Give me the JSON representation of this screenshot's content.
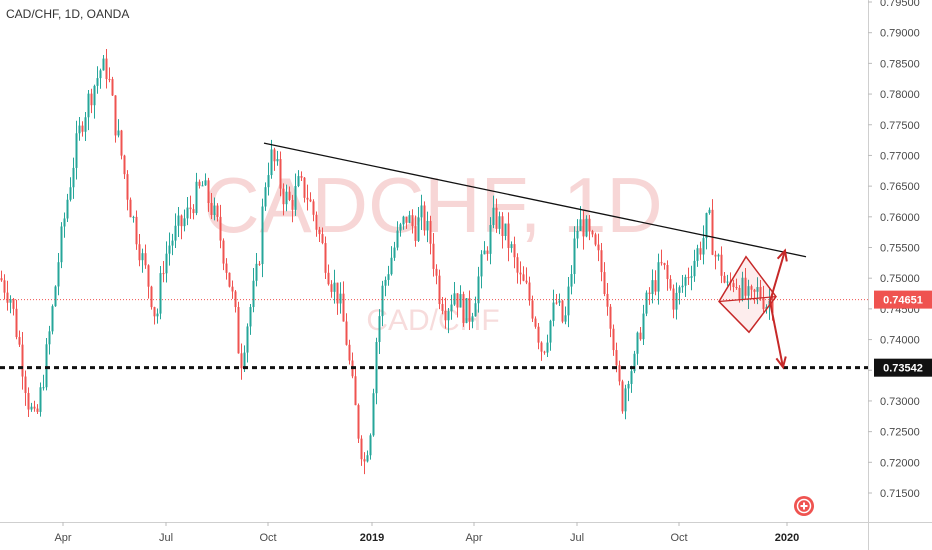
{
  "header": {
    "symbol_title": "CAD/CHF, 1D, OANDA"
  },
  "watermark": {
    "main": "CADCHF, 1D",
    "sub": "CAD/CHF"
  },
  "colors": {
    "up": "#26a69a",
    "down": "#ef5350",
    "trendline": "#111111",
    "current_line": "#ef5350",
    "support_line": "#111111",
    "pattern": "#c62828",
    "axis_text": "#4a4a4a",
    "current_tag_bg": "#ef5350",
    "support_tag_bg": "#111111"
  },
  "chart_data": {
    "type": "candlestick",
    "title": "CAD/CHF, 1D, OANDA",
    "ylim": [
      0.7095,
      0.7965
    ],
    "y_ticks": [
      "0.71500",
      "0.72000",
      "0.72500",
      "0.73000",
      "0.73500",
      "0.74000",
      "0.74500",
      "0.75000",
      "0.75500",
      "0.76000",
      "0.76500",
      "0.77000",
      "0.77500",
      "0.78000",
      "0.78500",
      "0.79000",
      "0.79500"
    ],
    "x_ticks": [
      "Apr",
      "Jul",
      "Oct",
      "2019",
      "Apr",
      "Jul",
      "Oct",
      "2020"
    ],
    "x_ticks_bold": [
      "2019",
      "2020"
    ],
    "current_price": "0.74651",
    "support_price": "0.73542",
    "series": [
      {
        "name": "CAD/CHF",
        "path_closes": [
          [
            0,
            0.75
          ],
          [
            10,
            0.747
          ],
          [
            20,
            0.738
          ],
          [
            28,
            0.73
          ],
          [
            35,
            0.726
          ],
          [
            42,
            0.733
          ],
          [
            50,
            0.742
          ],
          [
            58,
            0.753
          ],
          [
            66,
            0.762
          ],
          [
            74,
            0.77
          ],
          [
            82,
            0.776
          ],
          [
            90,
            0.78
          ],
          [
            100,
            0.784
          ],
          [
            107,
            0.784
          ],
          [
            114,
            0.776
          ],
          [
            121,
            0.77
          ],
          [
            128,
            0.763
          ],
          [
            135,
            0.758
          ],
          [
            142,
            0.753
          ],
          [
            150,
            0.748
          ],
          [
            156,
            0.743
          ],
          [
            162,
            0.752
          ],
          [
            170,
            0.756
          ],
          [
            178,
            0.758
          ],
          [
            186,
            0.76
          ],
          [
            194,
            0.763
          ],
          [
            202,
            0.765
          ],
          [
            210,
            0.762
          ],
          [
            218,
            0.758
          ],
          [
            226,
            0.752
          ],
          [
            234,
            0.745
          ],
          [
            240,
            0.736
          ],
          [
            246,
            0.742
          ],
          [
            252,
            0.747
          ],
          [
            258,
            0.752
          ],
          [
            264,
            0.765
          ],
          [
            270,
            0.77
          ],
          [
            276,
            0.768
          ],
          [
            282,
            0.764
          ],
          [
            290,
            0.762
          ],
          [
            298,
            0.765
          ],
          [
            306,
            0.764
          ],
          [
            314,
            0.76
          ],
          [
            322,
            0.755
          ],
          [
            330,
            0.75
          ],
          [
            338,
            0.747
          ],
          [
            346,
            0.74
          ],
          [
            352,
            0.732
          ],
          [
            358,
            0.725
          ],
          [
            364,
            0.72
          ],
          [
            370,
            0.726
          ],
          [
            376,
            0.74
          ],
          [
            382,
            0.748
          ],
          [
            390,
            0.753
          ],
          [
            398,
            0.757
          ],
          [
            406,
            0.76
          ],
          [
            414,
            0.758
          ],
          [
            422,
            0.76
          ],
          [
            430,
            0.756
          ],
          [
            438,
            0.748
          ],
          [
            446,
            0.745
          ],
          [
            454,
            0.748
          ],
          [
            462,
            0.745
          ],
          [
            470,
            0.744
          ],
          [
            478,
            0.75
          ],
          [
            486,
            0.755
          ],
          [
            494,
            0.76
          ],
          [
            502,
            0.758
          ],
          [
            510,
            0.755
          ],
          [
            518,
            0.75
          ],
          [
            526,
            0.748
          ],
          [
            534,
            0.744
          ],
          [
            542,
            0.738
          ],
          [
            548,
            0.742
          ],
          [
            556,
            0.746
          ],
          [
            564,
            0.742
          ],
          [
            570,
            0.75
          ],
          [
            576,
            0.758
          ],
          [
            582,
            0.759
          ],
          [
            590,
            0.756
          ],
          [
            598,
            0.753
          ],
          [
            606,
            0.748
          ],
          [
            612,
            0.742
          ],
          [
            616,
            0.734
          ],
          [
            622,
            0.73
          ],
          [
            628,
            0.735
          ],
          [
            634,
            0.736
          ],
          [
            640,
            0.742
          ],
          [
            648,
            0.747
          ],
          [
            656,
            0.75
          ],
          [
            662,
            0.752
          ],
          [
            668,
            0.749
          ],
          [
            674,
            0.746
          ],
          [
            680,
            0.748
          ],
          [
            688,
            0.751
          ],
          [
            696,
            0.754
          ],
          [
            702,
            0.756
          ],
          [
            708,
            0.76
          ],
          [
            714,
            0.754
          ],
          [
            720,
            0.752
          ],
          [
            726,
            0.748
          ],
          [
            734,
            0.75
          ],
          [
            742,
            0.748
          ],
          [
            750,
            0.746
          ],
          [
            758,
            0.748
          ],
          [
            766,
            0.746
          ],
          [
            772,
            0.7465
          ]
        ]
      }
    ],
    "annotations": [
      {
        "type": "trendline",
        "from": [
          264,
          0.772
        ],
        "to": [
          806,
          0.7535
        ]
      },
      {
        "type": "horizontal_line",
        "price": 0.73542,
        "style": "thick-dashed"
      },
      {
        "type": "horizontal_line",
        "price": 0.74651,
        "style": "dotted"
      },
      {
        "type": "diamond",
        "left": [
          719,
          0.7462
        ],
        "top": [
          746,
          0.7535
        ],
        "right": [
          776,
          0.747
        ],
        "bottom": [
          749,
          0.7412
        ]
      },
      {
        "type": "arrow",
        "from": [
          770,
          0.7462
        ],
        "to": [
          785,
          0.7545
        ]
      },
      {
        "type": "arrow",
        "from": [
          770,
          0.7462
        ],
        "to": [
          783,
          0.7355
        ]
      }
    ]
  }
}
